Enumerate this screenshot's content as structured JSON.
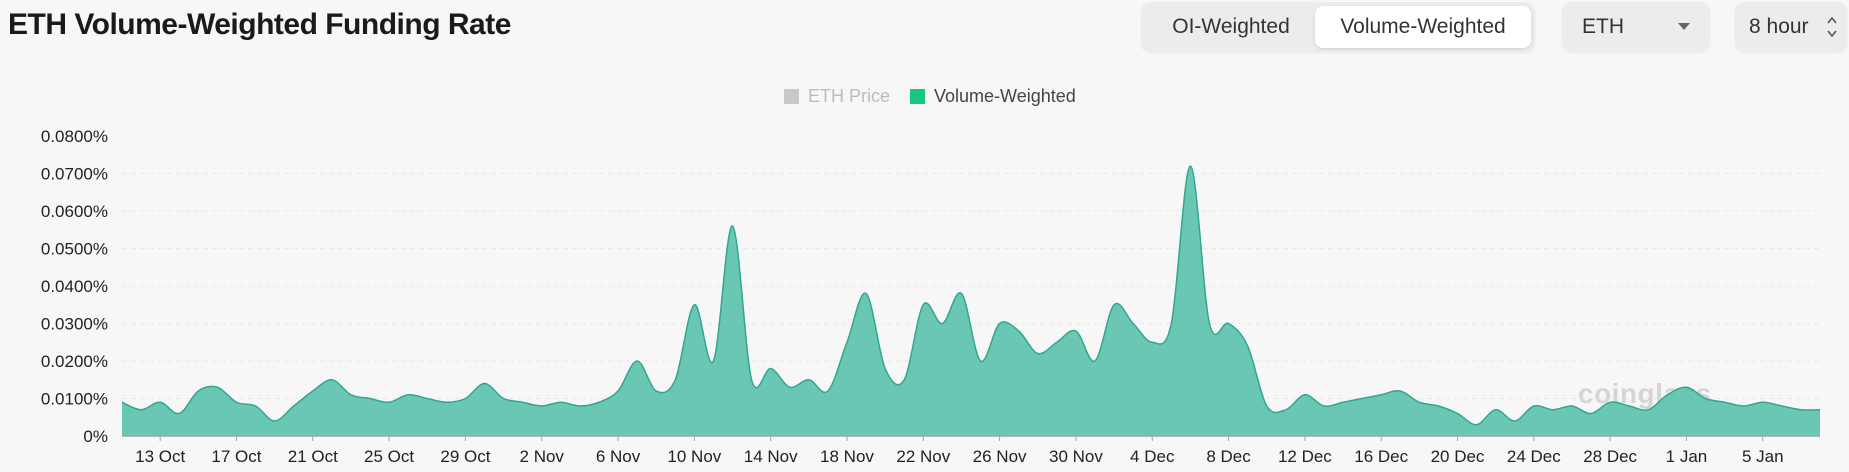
{
  "header": {
    "title": "ETH Volume-Weighted Funding Rate"
  },
  "controls": {
    "weighting_tabs": [
      {
        "label": "OI-Weighted",
        "active": false
      },
      {
        "label": "Volume-Weighted",
        "active": true
      }
    ],
    "coin_select": "ETH",
    "interval_select": "8 hour"
  },
  "watermark": "coinglass",
  "colors": {
    "series": "#16c784",
    "area_fill": "#62c4b0",
    "area_line": "#2fa88f",
    "inactive": "#c8c8c8",
    "grid": "#e8e8e8"
  },
  "chart_data": {
    "type": "area",
    "title": "ETH Volume-Weighted Funding Rate",
    "legend": [
      {
        "name": "ETH Price",
        "visible": false
      },
      {
        "name": "Volume-Weighted",
        "visible": true
      }
    ],
    "legend_position": "top-center",
    "grid": true,
    "y_ticks": [
      "0%",
      "0.0100%",
      "0.0200%",
      "0.0300%",
      "0.0400%",
      "0.0500%",
      "0.0600%",
      "0.0700%",
      "0.0800%"
    ],
    "ylim": [
      0,
      0.08
    ],
    "y_unit": "%",
    "x_ticks": [
      "13 Oct",
      "17 Oct",
      "21 Oct",
      "25 Oct",
      "29 Oct",
      "2 Nov",
      "6 Nov",
      "10 Nov",
      "14 Nov",
      "18 Nov",
      "22 Nov",
      "26 Nov",
      "30 Nov",
      "4 Dec",
      "8 Dec",
      "12 Dec",
      "16 Dec",
      "20 Dec",
      "24 Dec",
      "28 Dec",
      "1 Jan",
      "5 Jan"
    ],
    "x_start": "11 Oct",
    "x_end": "8 Jan",
    "series": [
      {
        "name": "Volume-Weighted",
        "x": [
          "11 Oct",
          "12 Oct",
          "13 Oct",
          "14 Oct",
          "15 Oct",
          "16 Oct",
          "17 Oct",
          "18 Oct",
          "19 Oct",
          "20 Oct",
          "21 Oct",
          "22 Oct",
          "23 Oct",
          "24 Oct",
          "25 Oct",
          "26 Oct",
          "27 Oct",
          "28 Oct",
          "29 Oct",
          "30 Oct",
          "31 Oct",
          "1 Nov",
          "2 Nov",
          "3 Nov",
          "4 Nov",
          "5 Nov",
          "6 Nov",
          "7 Nov",
          "8 Nov",
          "9 Nov",
          "10 Nov",
          "11 Nov",
          "12 Nov",
          "13 Nov",
          "14 Nov",
          "15 Nov",
          "16 Nov",
          "17 Nov",
          "18 Nov",
          "19 Nov",
          "20 Nov",
          "21 Nov",
          "22 Nov",
          "23 Nov",
          "24 Nov",
          "25 Nov",
          "26 Nov",
          "27 Nov",
          "28 Nov",
          "29 Nov",
          "30 Nov",
          "1 Dec",
          "2 Dec",
          "3 Dec",
          "4 Dec",
          "5 Dec",
          "6 Dec",
          "7 Dec",
          "8 Dec",
          "9 Dec",
          "10 Dec",
          "11 Dec",
          "12 Dec",
          "13 Dec",
          "14 Dec",
          "15 Dec",
          "16 Dec",
          "17 Dec",
          "18 Dec",
          "19 Dec",
          "20 Dec",
          "21 Dec",
          "22 Dec",
          "23 Dec",
          "24 Dec",
          "25 Dec",
          "26 Dec",
          "27 Dec",
          "28 Dec",
          "29 Dec",
          "30 Dec",
          "31 Dec",
          "1 Jan",
          "2 Jan",
          "3 Jan",
          "4 Jan",
          "5 Jan",
          "6 Jan",
          "7 Jan",
          "8 Jan"
        ],
        "values": [
          0.009,
          0.007,
          0.009,
          0.006,
          0.012,
          0.013,
          0.009,
          0.008,
          0.004,
          0.008,
          0.012,
          0.015,
          0.011,
          0.01,
          0.009,
          0.011,
          0.01,
          0.009,
          0.01,
          0.014,
          0.01,
          0.009,
          0.008,
          0.009,
          0.008,
          0.009,
          0.012,
          0.02,
          0.012,
          0.015,
          0.035,
          0.02,
          0.056,
          0.015,
          0.018,
          0.013,
          0.015,
          0.012,
          0.025,
          0.038,
          0.018,
          0.015,
          0.035,
          0.03,
          0.038,
          0.02,
          0.03,
          0.028,
          0.022,
          0.025,
          0.028,
          0.02,
          0.035,
          0.03,
          0.025,
          0.03,
          0.072,
          0.03,
          0.03,
          0.024,
          0.008,
          0.007,
          0.011,
          0.008,
          0.009,
          0.01,
          0.011,
          0.012,
          0.009,
          0.008,
          0.006,
          0.003,
          0.007,
          0.004,
          0.008,
          0.007,
          0.008,
          0.006,
          0.009,
          0.008,
          0.007,
          0.011,
          0.013,
          0.01,
          0.009,
          0.008,
          0.009,
          0.008,
          0.007,
          0.007
        ]
      }
    ]
  }
}
